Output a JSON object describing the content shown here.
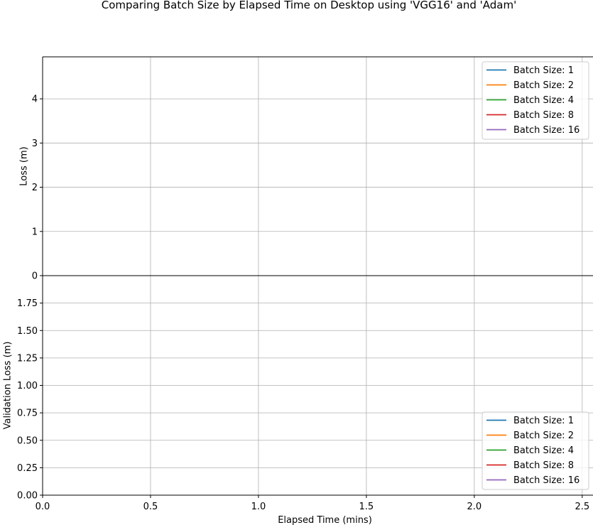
{
  "figure": {
    "title": "Comparing Batch Size by Elapsed Time on Desktop using 'VGG16' and 'Adam'"
  },
  "chart_data": [
    {
      "type": "line",
      "ylabel": "Loss (m)",
      "xlabel": "",
      "xlim": [
        0,
        2.55
      ],
      "ylim": [
        0,
        4.95
      ],
      "x_ticks": [
        0.0,
        0.5,
        1.0,
        1.5,
        2.0,
        2.5
      ],
      "y_ticks": [
        0,
        1,
        2,
        3,
        4
      ],
      "y_tick_labels": [
        "0",
        "1",
        "2",
        "3",
        "4"
      ],
      "grid": true,
      "legend_position": "top-right",
      "series": [
        {
          "name": "Batch Size: 1",
          "color": "#1f77b4",
          "x": [],
          "y": []
        },
        {
          "name": "Batch Size: 2",
          "color": "#ff7f0e",
          "x": [],
          "y": []
        },
        {
          "name": "Batch Size: 4",
          "color": "#2ca02c",
          "x": [],
          "y": []
        },
        {
          "name": "Batch Size: 8",
          "color": "#d62728",
          "x": [],
          "y": []
        },
        {
          "name": "Batch Size: 16",
          "color": "#9467bd",
          "x": [],
          "y": []
        }
      ]
    },
    {
      "type": "line",
      "ylabel": "Validation Loss (m)",
      "xlabel": "Elapsed Time (mins)",
      "xlim": [
        0,
        2.55
      ],
      "ylim": [
        0,
        2.0
      ],
      "x_ticks": [
        0.0,
        0.5,
        1.0,
        1.5,
        2.0,
        2.5
      ],
      "x_tick_labels": [
        "0.0",
        "0.5",
        "1.0",
        "1.5",
        "2.0",
        "2.5"
      ],
      "y_ticks": [
        0,
        0.25,
        0.5,
        0.75,
        1.0,
        1.25,
        1.5,
        1.75
      ],
      "y_tick_labels": [
        "0.00",
        "0.25",
        "0.50",
        "0.75",
        "1.00",
        "1.25",
        "1.50",
        "1.75"
      ],
      "grid": true,
      "legend_position": "bottom-right",
      "series": [
        {
          "name": "Batch Size: 1",
          "color": "#1f77b4",
          "x": [],
          "y": []
        },
        {
          "name": "Batch Size: 2",
          "color": "#ff7f0e",
          "x": [],
          "y": []
        },
        {
          "name": "Batch Size: 4",
          "color": "#2ca02c",
          "x": [],
          "y": []
        },
        {
          "name": "Batch Size: 8",
          "color": "#d62728",
          "x": [],
          "y": []
        },
        {
          "name": "Batch Size: 16",
          "color": "#9467bd",
          "x": [],
          "y": []
        }
      ]
    }
  ]
}
